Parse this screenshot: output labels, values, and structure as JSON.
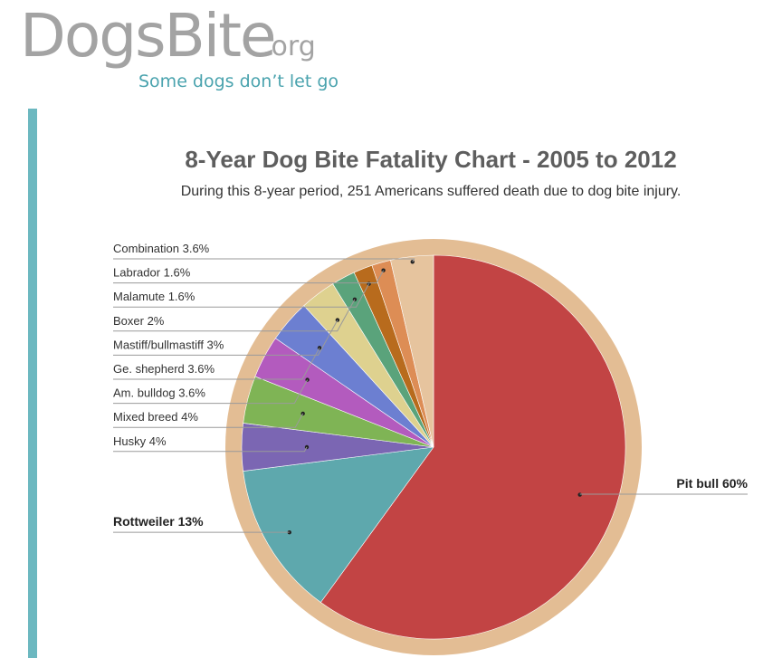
{
  "logo": {
    "brand": "DogsBite",
    "suffix": ".org",
    "tagline": "Some dogs don’t let go"
  },
  "accent_color": "#6cb8c0",
  "chart_data": {
    "type": "pie",
    "title": "8-Year Dog Bite Fatality Chart - 2005 to 2012",
    "subtitle": "During this 8-year period, 251 Americans suffered death due to dog bite injury.",
    "ring_color": "#e3bd94",
    "slices": [
      {
        "label": "Pit bull 60%",
        "value": 60,
        "color": "#c24444",
        "bold": true
      },
      {
        "label": "Rottweiler 13%",
        "value": 13,
        "color": "#5ea8ad",
        "bold": true
      },
      {
        "label": "Husky 4%",
        "value": 4,
        "color": "#7b66b3",
        "bold": false
      },
      {
        "label": "Mixed breed 4%",
        "value": 4,
        "color": "#7fb455",
        "bold": false
      },
      {
        "label": "Am. bulldog 3.6%",
        "value": 3.6,
        "color": "#b35bbe",
        "bold": false
      },
      {
        "label": "Ge. shepherd 3.6%",
        "value": 3.6,
        "color": "#6c7fd1",
        "bold": false
      },
      {
        "label": "Mastiff/bullmastiff 3%",
        "value": 3,
        "color": "#ded18f",
        "bold": false
      },
      {
        "label": "Boxer 2%",
        "value": 2,
        "color": "#5aa37b",
        "bold": false
      },
      {
        "label": "Malamute 1.6%",
        "value": 1.6,
        "color": "#b86b1d",
        "bold": false
      },
      {
        "label": "Labrador 1.6%",
        "value": 1.6,
        "color": "#dd8d55",
        "bold": false
      },
      {
        "label": "Combination 3.6%",
        "value": 3.6,
        "color": "#e6c49e",
        "bold": false
      }
    ]
  }
}
